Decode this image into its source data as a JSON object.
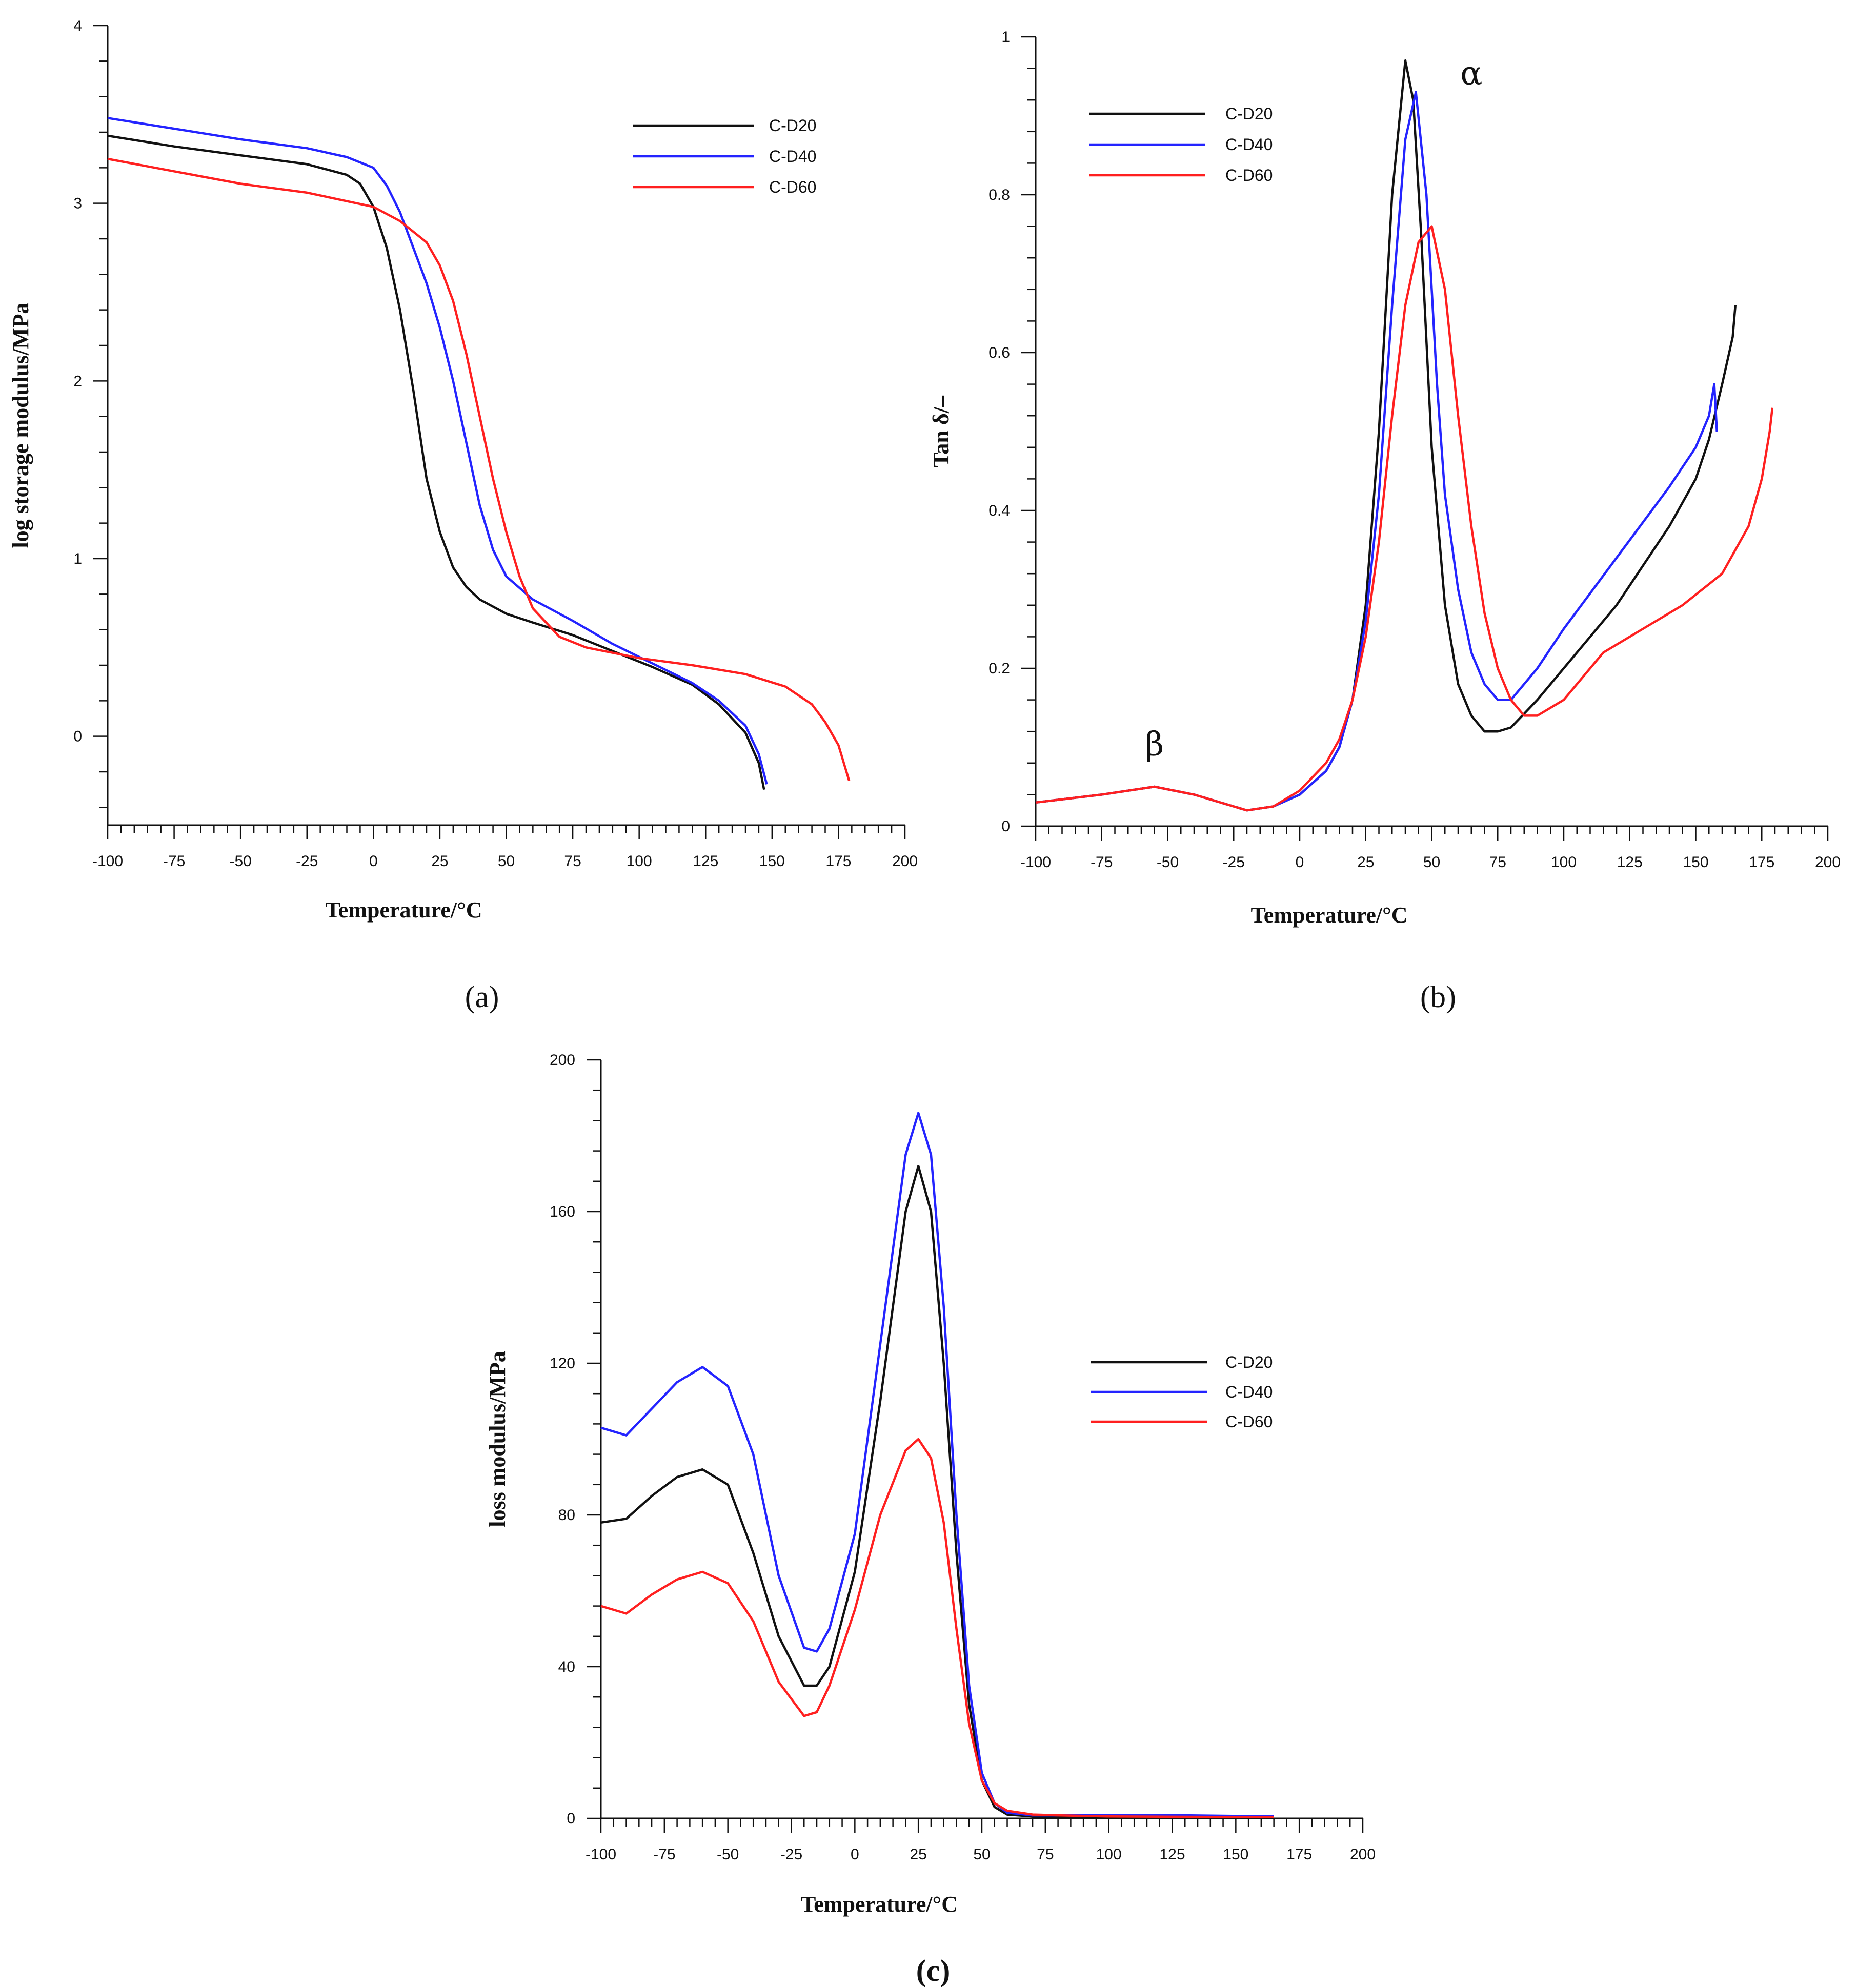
{
  "colors": {
    "C-D20": "#111111",
    "C-D40": "#2424ff",
    "C-D60": "#ff2020"
  },
  "chart_data": [
    {
      "panel": "(a)",
      "type": "line",
      "xlabel": "Temperature/°C",
      "ylabel": "log storage modulus/MPa",
      "xlim": [
        -100,
        200
      ],
      "ylim": [
        -0.5,
        4
      ],
      "xticks": [
        -100,
        -75,
        -50,
        -25,
        0,
        25,
        50,
        75,
        100,
        125,
        150,
        175,
        200
      ],
      "yticks": [
        0,
        1,
        2,
        3,
        4
      ],
      "legend": [
        "C-D20",
        "C-D40",
        "C-D60"
      ],
      "series": [
        {
          "name": "C-D20",
          "x": [
            -100,
            -75,
            -50,
            -25,
            -10,
            -5,
            0,
            5,
            10,
            15,
            20,
            25,
            30,
            35,
            40,
            50,
            60,
            75,
            90,
            105,
            120,
            130,
            140,
            145,
            147
          ],
          "y": [
            3.38,
            3.32,
            3.27,
            3.22,
            3.16,
            3.11,
            2.98,
            2.75,
            2.4,
            1.95,
            1.45,
            1.15,
            0.95,
            0.84,
            0.77,
            0.69,
            0.64,
            0.57,
            0.48,
            0.39,
            0.29,
            0.18,
            0.02,
            -0.15,
            -0.3
          ]
        },
        {
          "name": "C-D40",
          "x": [
            -100,
            -75,
            -50,
            -25,
            -10,
            0,
            5,
            10,
            15,
            20,
            25,
            30,
            35,
            40,
            45,
            50,
            60,
            75,
            90,
            105,
            120,
            130,
            140,
            145,
            148
          ],
          "y": [
            3.48,
            3.42,
            3.36,
            3.31,
            3.26,
            3.2,
            3.1,
            2.95,
            2.75,
            2.55,
            2.3,
            2.0,
            1.65,
            1.3,
            1.05,
            0.9,
            0.77,
            0.65,
            0.52,
            0.41,
            0.3,
            0.2,
            0.06,
            -0.1,
            -0.27
          ]
        },
        {
          "name": "C-D60",
          "x": [
            -100,
            -75,
            -50,
            -25,
            0,
            10,
            20,
            25,
            30,
            35,
            40,
            45,
            50,
            55,
            60,
            70,
            80,
            90,
            100,
            120,
            140,
            155,
            165,
            170,
            175,
            179
          ],
          "y": [
            3.25,
            3.18,
            3.11,
            3.06,
            2.98,
            2.9,
            2.78,
            2.65,
            2.45,
            2.15,
            1.8,
            1.45,
            1.15,
            0.9,
            0.72,
            0.56,
            0.5,
            0.47,
            0.44,
            0.4,
            0.35,
            0.28,
            0.18,
            0.08,
            -0.05,
            -0.25
          ]
        }
      ]
    },
    {
      "panel": "(b)",
      "type": "line",
      "xlabel": "Temperature/°C",
      "ylabel": "Tan δ/–",
      "xlim": [
        -100,
        200
      ],
      "ylim": [
        0,
        1
      ],
      "xticks": [
        -100,
        -75,
        -50,
        -25,
        0,
        25,
        50,
        75,
        100,
        125,
        150,
        175,
        200
      ],
      "yticks": [
        0,
        0.2,
        0.4,
        0.6,
        0.8,
        1
      ],
      "legend": [
        "C-D20",
        "C-D40",
        "C-D60"
      ],
      "annotations": [
        {
          "text": "β",
          "x": -55,
          "y": 0.09
        },
        {
          "text": "α",
          "x": 65,
          "y": 0.94
        }
      ],
      "series": [
        {
          "name": "C-D20",
          "x": [
            -100,
            -75,
            -55,
            -40,
            -20,
            -10,
            0,
            10,
            15,
            20,
            25,
            30,
            35,
            40,
            43,
            46,
            50,
            55,
            60,
            65,
            70,
            75,
            80,
            90,
            100,
            110,
            120,
            130,
            140,
            150,
            155,
            160,
            164,
            165
          ],
          "y": [
            0.03,
            0.04,
            0.05,
            0.04,
            0.02,
            0.025,
            0.04,
            0.07,
            0.1,
            0.16,
            0.28,
            0.5,
            0.8,
            0.97,
            0.92,
            0.75,
            0.48,
            0.28,
            0.18,
            0.14,
            0.12,
            0.12,
            0.125,
            0.16,
            0.2,
            0.24,
            0.28,
            0.33,
            0.38,
            0.44,
            0.49,
            0.56,
            0.62,
            0.66
          ]
        },
        {
          "name": "C-D40",
          "x": [
            -100,
            -75,
            -55,
            -40,
            -20,
            -10,
            0,
            10,
            15,
            20,
            25,
            30,
            35,
            40,
            44,
            48,
            52,
            55,
            60,
            65,
            70,
            75,
            80,
            90,
            100,
            120,
            140,
            150,
            155,
            157,
            158
          ],
          "y": [
            0.03,
            0.04,
            0.05,
            0.04,
            0.02,
            0.025,
            0.04,
            0.07,
            0.1,
            0.16,
            0.26,
            0.42,
            0.66,
            0.87,
            0.93,
            0.8,
            0.56,
            0.42,
            0.3,
            0.22,
            0.18,
            0.16,
            0.16,
            0.2,
            0.25,
            0.34,
            0.43,
            0.48,
            0.52,
            0.56,
            0.5
          ]
        },
        {
          "name": "C-D60",
          "x": [
            -100,
            -75,
            -55,
            -40,
            -20,
            -10,
            0,
            10,
            15,
            20,
            25,
            30,
            35,
            40,
            45,
            50,
            55,
            60,
            65,
            70,
            75,
            80,
            85,
            90,
            100,
            115,
            130,
            145,
            160,
            170,
            175,
            178,
            179
          ],
          "y": [
            0.03,
            0.04,
            0.05,
            0.04,
            0.02,
            0.025,
            0.045,
            0.08,
            0.11,
            0.16,
            0.24,
            0.36,
            0.52,
            0.66,
            0.74,
            0.76,
            0.68,
            0.52,
            0.38,
            0.27,
            0.2,
            0.16,
            0.14,
            0.14,
            0.16,
            0.22,
            0.25,
            0.28,
            0.32,
            0.38,
            0.44,
            0.5,
            0.53
          ]
        }
      ]
    },
    {
      "panel": "(c)",
      "type": "line",
      "xlabel": "Temperature/°C",
      "ylabel": "loss modulus/MPa",
      "xlim": [
        -100,
        200
      ],
      "ylim": [
        0,
        200
      ],
      "xticks": [
        -100,
        -75,
        -50,
        -25,
        0,
        25,
        50,
        75,
        100,
        125,
        150,
        175,
        200
      ],
      "yticks": [
        0,
        40,
        80,
        120,
        160,
        200
      ],
      "legend": [
        "C-D20",
        "C-D40",
        "C-D60"
      ],
      "series": [
        {
          "name": "C-D20",
          "x": [
            -100,
            -90,
            -80,
            -70,
            -60,
            -50,
            -40,
            -30,
            -20,
            -15,
            -10,
            0,
            10,
            20,
            25,
            30,
            35,
            40,
            45,
            50,
            55,
            60,
            70,
            80,
            100,
            130,
            165
          ],
          "y": [
            78,
            79,
            85,
            90,
            92,
            88,
            70,
            48,
            35,
            35,
            40,
            65,
            110,
            160,
            172,
            160,
            120,
            70,
            30,
            10,
            3,
            1,
            0.5,
            0.5,
            0.3,
            0.3,
            0.3
          ]
        },
        {
          "name": "C-D40",
          "x": [
            -100,
            -90,
            -80,
            -70,
            -60,
            -50,
            -40,
            -30,
            -20,
            -15,
            -10,
            0,
            10,
            20,
            25,
            30,
            35,
            40,
            45,
            50,
            55,
            60,
            70,
            80,
            100,
            130,
            165
          ],
          "y": [
            103,
            101,
            108,
            115,
            119,
            114,
            96,
            64,
            45,
            44,
            50,
            75,
            125,
            175,
            186,
            175,
            135,
            80,
            35,
            12,
            4,
            1.5,
            0.8,
            0.8,
            0.8,
            0.8,
            0.5
          ]
        },
        {
          "name": "C-D60",
          "x": [
            -100,
            -90,
            -80,
            -70,
            -60,
            -50,
            -40,
            -30,
            -20,
            -15,
            -10,
            0,
            10,
            20,
            25,
            30,
            35,
            40,
            45,
            50,
            55,
            60,
            70,
            80,
            100,
            130,
            165
          ],
          "y": [
            56,
            54,
            59,
            63,
            65,
            62,
            52,
            36,
            27,
            28,
            35,
            55,
            80,
            97,
            100,
            95,
            78,
            50,
            25,
            10,
            4,
            2,
            1,
            0.8,
            0.5,
            0.4,
            0.3
          ]
        }
      ]
    }
  ]
}
